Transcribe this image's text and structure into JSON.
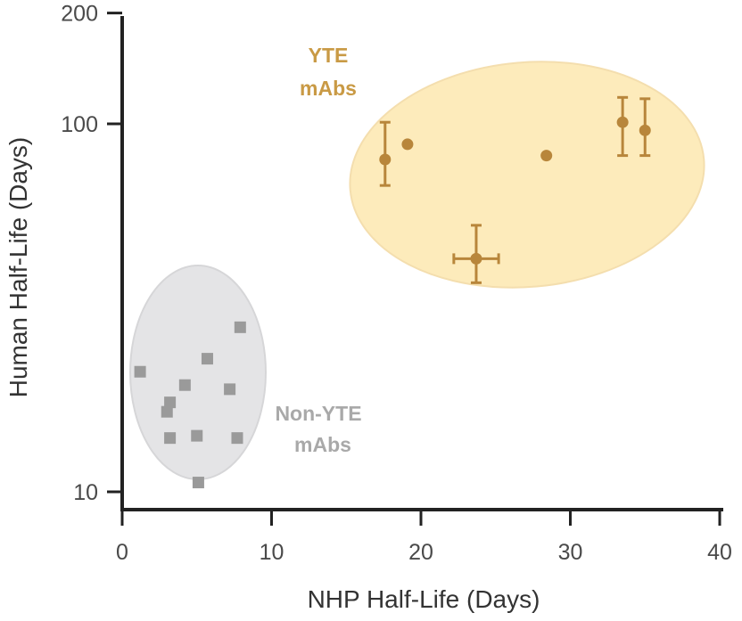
{
  "chart_data": {
    "type": "scatter",
    "xlabel": "NHP Half-Life (Days)",
    "ylabel": "Human Half-Life (Days)",
    "x_ticks": [
      "0",
      "10",
      "20",
      "30",
      "40"
    ],
    "y_ticks": [
      "10",
      "100",
      "200"
    ],
    "xlim": [
      0,
      40
    ],
    "ylim": [
      10,
      200
    ],
    "y_scale": "log",
    "grid": false,
    "annotations": {
      "yte": [
        "YTE",
        "mAbs"
      ],
      "non_yte": [
        "Non-YTE",
        "mAbs"
      ]
    },
    "series": [
      {
        "marker": "circle",
        "color": "#b8863b",
        "points": [
          {
            "x": 17.6,
            "y": 80,
            "y_err": [
              68,
              101
            ]
          },
          {
            "x": 19.1,
            "y": 88
          },
          {
            "x": 23.7,
            "y": 43,
            "x_err": [
              22.2,
              25.2
            ],
            "y_err": [
              37,
              53
            ]
          },
          {
            "x": 28.4,
            "y": 82
          },
          {
            "x": 33.5,
            "y": 101,
            "y_err": [
              82,
              118
            ]
          },
          {
            "x": 35.0,
            "y": 96,
            "y_err": [
              82,
              117
            ]
          }
        ]
      },
      {
        "marker": "square",
        "color": "#9a9a9a",
        "points": [
          {
            "x": 1.2,
            "y": 21.2
          },
          {
            "x": 3.0,
            "y": 16.5
          },
          {
            "x": 3.2,
            "y": 17.5
          },
          {
            "x": 3.2,
            "y": 14.0
          },
          {
            "x": 4.2,
            "y": 19.5
          },
          {
            "x": 5.0,
            "y": 14.2
          },
          {
            "x": 5.1,
            "y": 10.6
          },
          {
            "x": 5.7,
            "y": 23.0
          },
          {
            "x": 7.2,
            "y": 19.0
          },
          {
            "x": 7.7,
            "y": 14.0
          },
          {
            "x": 7.9,
            "y": 28.0
          }
        ]
      }
    ],
    "regions": [
      {
        "name": "yte",
        "fill": "#fde9b4",
        "stroke": "#f3dba6"
      },
      {
        "name": "non_yte",
        "fill": "#e4e4e6",
        "stroke": "#d6d6d8"
      }
    ]
  }
}
